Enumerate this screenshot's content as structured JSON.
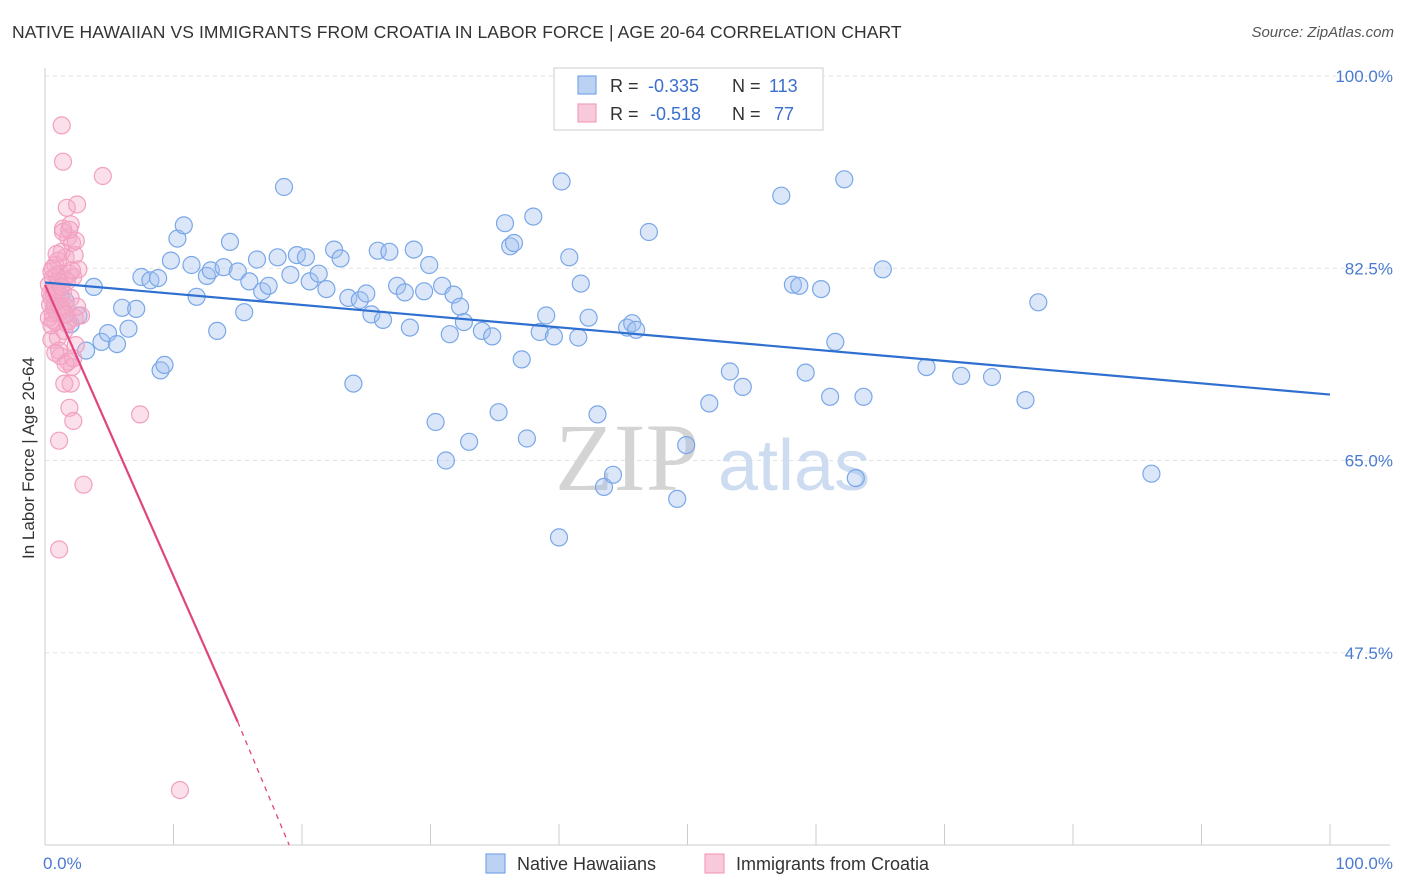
{
  "header": {
    "title": "NATIVE HAWAIIAN VS IMMIGRANTS FROM CROATIA IN LABOR FORCE | AGE 20-64 CORRELATION CHART",
    "source": "Source: ZipAtlas.com"
  },
  "watermark": {
    "zip": "ZIP",
    "atlas": "atlas"
  },
  "chart_data": {
    "type": "scatter",
    "title": "NATIVE HAWAIIAN VS IMMIGRANTS FROM CROATIA IN LABOR FORCE | AGE 20-64 CORRELATION CHART",
    "xlabel": "",
    "ylabel": "In Labor Force | Age 20-64",
    "xlim": [
      0,
      100
    ],
    "ylim": [
      30,
      100
    ],
    "x_tick_labels": [
      "0.0%",
      "100.0%"
    ],
    "y_ticks": [
      47.5,
      65.0,
      82.5,
      100.0
    ],
    "y_tick_labels": [
      "47.5%",
      "65.0%",
      "82.5%",
      "100.0%"
    ],
    "grid": true,
    "legend_position": "top-center",
    "stats": [
      {
        "r_label": "R =",
        "r_value": "-0.335",
        "n_label": "N =",
        "n_value": "113"
      },
      {
        "r_label": "R =",
        "r_value": "-0.518",
        "n_label": "N =",
        "n_value": "77"
      }
    ],
    "series": [
      {
        "name": "Native Hawaiians",
        "color": "#7aa7e8",
        "line_color": "#2f6fd0",
        "trend": {
          "x0": 0,
          "y0": 81.2,
          "x1": 100,
          "y1": 71.0
        },
        "points": [
          [
            0.8,
            79.2
          ],
          [
            1.2,
            80.0
          ],
          [
            1.6,
            79.5
          ],
          [
            2.0,
            77.4
          ],
          [
            2.6,
            78.2
          ],
          [
            3.2,
            75.0
          ],
          [
            3.8,
            80.8
          ],
          [
            4.4,
            75.8
          ],
          [
            4.9,
            76.6
          ],
          [
            5.6,
            75.6
          ],
          [
            6.0,
            78.9
          ],
          [
            6.5,
            77.0
          ],
          [
            7.1,
            78.8
          ],
          [
            7.5,
            81.7
          ],
          [
            8.2,
            81.4
          ],
          [
            8.8,
            81.6
          ],
          [
            9.0,
            73.2
          ],
          [
            9.3,
            73.7
          ],
          [
            9.8,
            83.2
          ],
          [
            10.3,
            85.2
          ],
          [
            10.8,
            86.4
          ],
          [
            11.4,
            82.8
          ],
          [
            11.8,
            79.9
          ],
          [
            12.6,
            81.8
          ],
          [
            12.9,
            82.3
          ],
          [
            13.4,
            76.8
          ],
          [
            13.9,
            82.6
          ],
          [
            14.4,
            84.9
          ],
          [
            15.0,
            82.2
          ],
          [
            15.5,
            78.5
          ],
          [
            15.9,
            81.3
          ],
          [
            16.5,
            83.3
          ],
          [
            16.9,
            80.4
          ],
          [
            17.4,
            80.9
          ],
          [
            18.1,
            83.5
          ],
          [
            18.6,
            89.9
          ],
          [
            19.1,
            81.9
          ],
          [
            19.6,
            83.7
          ],
          [
            20.3,
            83.5
          ],
          [
            20.6,
            81.3
          ],
          [
            21.3,
            82.0
          ],
          [
            21.9,
            80.6
          ],
          [
            22.5,
            84.2
          ],
          [
            23.0,
            83.4
          ],
          [
            23.6,
            79.8
          ],
          [
            24.0,
            72.0
          ],
          [
            24.5,
            79.6
          ],
          [
            25.0,
            80.2
          ],
          [
            25.4,
            78.3
          ],
          [
            25.9,
            84.1
          ],
          [
            26.3,
            77.8
          ],
          [
            26.8,
            84.0
          ],
          [
            27.4,
            80.9
          ],
          [
            28.0,
            80.3
          ],
          [
            28.4,
            77.1
          ],
          [
            28.7,
            84.2
          ],
          [
            29.5,
            80.4
          ],
          [
            29.9,
            82.8
          ],
          [
            30.4,
            68.5
          ],
          [
            30.9,
            80.9
          ],
          [
            31.2,
            65.0
          ],
          [
            31.8,
            80.1
          ],
          [
            32.3,
            79.0
          ],
          [
            32.6,
            77.6
          ],
          [
            33.0,
            66.7
          ],
          [
            34.0,
            76.8
          ],
          [
            34.8,
            76.3
          ],
          [
            35.3,
            69.4
          ],
          [
            35.8,
            86.6
          ],
          [
            36.2,
            84.5
          ],
          [
            36.5,
            84.8
          ],
          [
            37.1,
            74.2
          ],
          [
            37.5,
            67.0
          ],
          [
            38.0,
            87.2
          ],
          [
            38.5,
            76.7
          ],
          [
            39.0,
            78.2
          ],
          [
            39.6,
            76.3
          ],
          [
            40.2,
            90.4
          ],
          [
            40.8,
            83.5
          ],
          [
            41.5,
            76.2
          ],
          [
            41.7,
            81.1
          ],
          [
            42.3,
            78.0
          ],
          [
            43.0,
            69.2
          ],
          [
            43.5,
            62.6
          ],
          [
            44.2,
            63.7
          ],
          [
            45.3,
            77.1
          ],
          [
            45.7,
            77.5
          ],
          [
            46.0,
            76.9
          ],
          [
            47.0,
            85.8
          ],
          [
            49.2,
            61.5
          ],
          [
            49.9,
            66.4
          ],
          [
            51.7,
            70.2
          ],
          [
            53.3,
            73.1
          ],
          [
            54.3,
            71.7
          ],
          [
            57.3,
            89.1
          ],
          [
            58.2,
            81.0
          ],
          [
            58.7,
            80.9
          ],
          [
            59.2,
            73.0
          ],
          [
            60.4,
            80.6
          ],
          [
            61.1,
            70.8
          ],
          [
            61.5,
            75.8
          ],
          [
            62.2,
            90.6
          ],
          [
            63.1,
            63.4
          ],
          [
            63.7,
            70.8
          ],
          [
            65.2,
            82.4
          ],
          [
            68.6,
            73.5
          ],
          [
            71.3,
            72.7
          ],
          [
            73.7,
            72.6
          ],
          [
            76.3,
            70.5
          ],
          [
            77.3,
            79.4
          ],
          [
            86.1,
            63.8
          ],
          [
            40.0,
            58.0
          ],
          [
            31.5,
            76.5
          ]
        ]
      },
      {
        "name": "Immigrants from Croatia",
        "color": "#f2a0bf",
        "line_color": "#e0457f",
        "trend": {
          "x0": 0,
          "y0": 81.0,
          "x1": 15.0,
          "y1": 41.2
        },
        "trend_dash": {
          "x0": 15.0,
          "y0": 41.2,
          "x1": 19.0,
          "y1": 30.0
        },
        "points": [
          [
            0.3,
            81.0
          ],
          [
            0.4,
            80.2
          ],
          [
            0.5,
            82.2
          ],
          [
            0.5,
            79.8
          ],
          [
            0.6,
            78.4
          ],
          [
            0.6,
            81.6
          ],
          [
            0.7,
            80.5
          ],
          [
            0.7,
            79.0
          ],
          [
            0.8,
            82.8
          ],
          [
            0.8,
            77.6
          ],
          [
            0.9,
            81.9
          ],
          [
            0.9,
            80.8
          ],
          [
            1.0,
            76.2
          ],
          [
            1.0,
            83.2
          ],
          [
            1.1,
            79.5
          ],
          [
            1.1,
            75.0
          ],
          [
            1.2,
            82.0
          ],
          [
            1.2,
            74.5
          ],
          [
            1.3,
            78.7
          ],
          [
            1.3,
            84.0
          ],
          [
            1.4,
            80.2
          ],
          [
            1.4,
            86.1
          ],
          [
            1.5,
            81.5
          ],
          [
            1.5,
            72.0
          ],
          [
            1.6,
            83.5
          ],
          [
            1.6,
            79.0
          ],
          [
            1.7,
            88.0
          ],
          [
            1.7,
            77.5
          ],
          [
            1.8,
            85.3
          ],
          [
            1.8,
            74.0
          ],
          [
            1.9,
            82.0
          ],
          [
            1.9,
            69.8
          ],
          [
            2.0,
            86.5
          ],
          [
            2.0,
            79.8
          ],
          [
            2.1,
            84.8
          ],
          [
            2.1,
            73.5
          ],
          [
            2.2,
            81.7
          ],
          [
            2.2,
            68.6
          ],
          [
            2.3,
            78.0
          ],
          [
            2.3,
            83.7
          ],
          [
            2.4,
            85.0
          ],
          [
            2.4,
            75.5
          ],
          [
            2.5,
            88.3
          ],
          [
            2.6,
            82.4
          ],
          [
            2.8,
            78.2
          ],
          [
            3.0,
            62.8
          ],
          [
            1.3,
            95.5
          ],
          [
            1.4,
            92.2
          ],
          [
            4.5,
            90.9
          ],
          [
            7.4,
            69.2
          ],
          [
            1.1,
            66.8
          ],
          [
            1.1,
            56.9
          ],
          [
            10.5,
            35.0
          ],
          [
            0.6,
            77.8
          ],
          [
            0.9,
            78.5
          ],
          [
            1.5,
            76.8
          ],
          [
            1.8,
            77.7
          ],
          [
            0.4,
            79.2
          ],
          [
            0.7,
            80.0
          ],
          [
            1.0,
            81.3
          ],
          [
            1.2,
            79.0
          ],
          [
            0.5,
            76.0
          ],
          [
            0.8,
            74.8
          ],
          [
            1.6,
            73.8
          ],
          [
            2.0,
            72.0
          ],
          [
            2.2,
            74.3
          ],
          [
            0.3,
            78.0
          ],
          [
            0.6,
            82.5
          ],
          [
            1.4,
            85.8
          ],
          [
            1.9,
            86.0
          ],
          [
            2.5,
            79.0
          ],
          [
            1.7,
            81.3
          ],
          [
            0.9,
            83.8
          ],
          [
            1.3,
            80.8
          ],
          [
            2.1,
            82.3
          ],
          [
            0.5,
            77.3
          ],
          [
            1.6,
            78.3
          ]
        ]
      }
    ]
  },
  "legend_bottom": [
    "Native Hawaiians",
    "Immigrants from Croatia"
  ]
}
